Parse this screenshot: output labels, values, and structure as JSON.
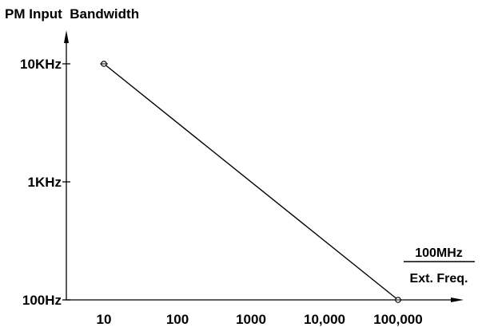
{
  "chart_data": {
    "type": "line",
    "title": "PM Input  Bandwidth",
    "x_label_numerator": "100MHz",
    "x_label_denominator": "Ext. Freq.",
    "x_scale": "log",
    "y_scale": "log",
    "x_ticks": [
      {
        "value": 10,
        "label": "10"
      },
      {
        "value": 100,
        "label": "100"
      },
      {
        "value": 1000,
        "label": "1000"
      },
      {
        "value": 10000,
        "label": "10,000"
      },
      {
        "value": 100000,
        "label": "100,000"
      }
    ],
    "y_ticks": [
      {
        "value": 100,
        "label": "100Hz"
      },
      {
        "value": 1000,
        "label": "1KHz"
      },
      {
        "value": 10000,
        "label": "10KHz"
      }
    ],
    "series": [
      {
        "x": [
          10,
          100000
        ],
        "y": [
          10000,
          100
        ]
      }
    ],
    "grid": false,
    "legend": "none",
    "line_color": "#000000"
  }
}
